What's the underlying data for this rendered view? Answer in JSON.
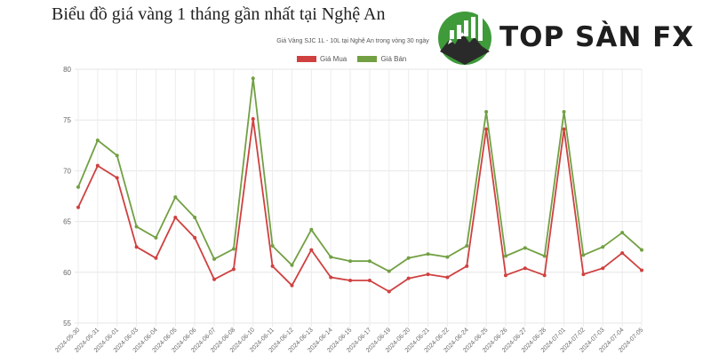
{
  "page": {
    "heading": "Biểu đồ giá vàng 1 tháng gần nhất tại Nghệ An"
  },
  "logo": {
    "text": "TOP SÀN FX",
    "icon": "mountain-chart-logo-icon",
    "green": "#3f9a3a"
  },
  "chart_data": {
    "type": "line",
    "title": "Giá Vàng SJC 1L - 10L tại Nghệ An trong vòng 30 ngày",
    "xlabel": "",
    "ylabel": "",
    "ylim": [
      55,
      80
    ],
    "yticks": [
      55,
      60,
      65,
      70,
      75,
      80
    ],
    "grid": true,
    "legend_position": "top-center",
    "categories": [
      "2024-05-30",
      "2024-05-31",
      "2024-06-01",
      "2024-06-03",
      "2024-06-04",
      "2024-06-05",
      "2024-06-06",
      "2024-06-07",
      "2024-06-08",
      "2024-06-10",
      "2024-06-11",
      "2024-06-12",
      "2024-06-13",
      "2024-06-14",
      "2024-06-15",
      "2024-06-17",
      "2024-06-19",
      "2024-06-20",
      "2024-06-21",
      "2024-06-22",
      "2024-06-24",
      "2024-06-25",
      "2024-06-26",
      "2024-06-27",
      "2024-06-28",
      "2024-07-01",
      "2024-07-02",
      "2024-07-03",
      "2024-07-04",
      "2024-07-05"
    ],
    "series": [
      {
        "name": "Giá Mua",
        "color": "#d04040",
        "values": [
          66.4,
          70.5,
          69.3,
          62.5,
          61.4,
          65.4,
          63.4,
          59.3,
          60.3,
          75.1,
          60.6,
          58.7,
          62.2,
          59.5,
          59.2,
          59.2,
          58.1,
          59.4,
          59.8,
          59.5,
          60.6,
          74.1,
          59.7,
          60.4,
          59.7,
          74.1,
          59.8,
          60.4,
          61.9,
          60.2
        ]
      },
      {
        "name": "Giá Bán",
        "color": "#72a043",
        "values": [
          68.4,
          73.0,
          71.5,
          64.5,
          63.4,
          67.4,
          65.4,
          61.3,
          62.3,
          79.1,
          62.6,
          60.7,
          64.2,
          61.5,
          61.1,
          61.1,
          60.1,
          61.4,
          61.8,
          61.5,
          62.6,
          75.8,
          61.6,
          62.4,
          61.6,
          75.8,
          61.7,
          62.5,
          63.9,
          62.2
        ]
      }
    ]
  }
}
